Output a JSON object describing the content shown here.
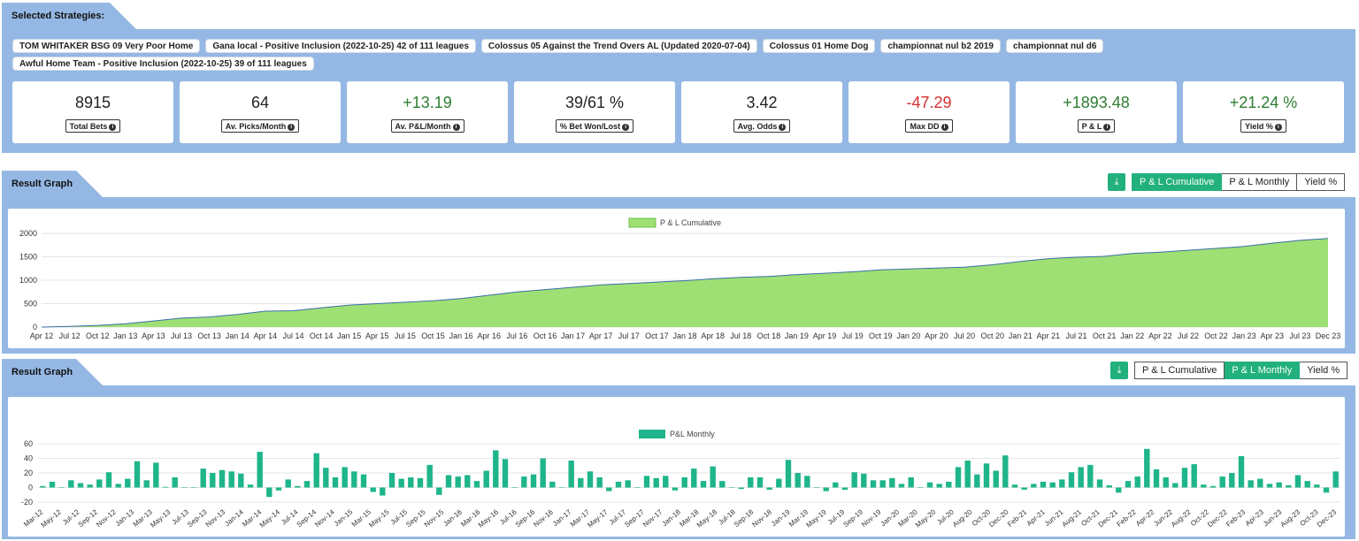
{
  "strategies": {
    "title": "Selected Strategies:",
    "chips": [
      "TOM WHITAKER BSG 09 Very Poor Home",
      "Gana local - Positive Inclusion (2022-10-25) 42 of 111 leagues",
      "Colossus 05 Against the Trend Overs AL (Updated 2020-07-04)",
      "Colossus 01 Home Dog",
      "championnat nul b2 2019",
      "championnat nul d6",
      "Awful Home Team - Positive Inclusion (2022-10-25) 39 of 111 leagues"
    ]
  },
  "stats": [
    {
      "value": "8915",
      "label": "Total Bets",
      "tone": "neutral"
    },
    {
      "value": "64",
      "label": "Av. Picks/Month",
      "tone": "neutral"
    },
    {
      "value": "+13.19",
      "label": "Av. P&L/Month",
      "tone": "pos"
    },
    {
      "value": "39/61 %",
      "label": "% Bet Won/Lost",
      "tone": "neutral"
    },
    {
      "value": "3.42",
      "label": "Avg. Odds",
      "tone": "neutral"
    },
    {
      "value": "-47.29",
      "label": "Max DD",
      "tone": "neg"
    },
    {
      "value": "+1893.48",
      "label": "P & L",
      "tone": "pos"
    },
    {
      "value": "+21.24 %",
      "label": "Yield %",
      "tone": "pos"
    }
  ],
  "graph1": {
    "title": "Result Graph",
    "download_icon": "download-icon",
    "buttons": [
      "P & L Cumulative",
      "P & L Monthly",
      "Yield %"
    ],
    "active": 0
  },
  "graph2": {
    "title": "Result Graph",
    "download_icon": "download-icon",
    "buttons": [
      "P & L Cumulative",
      "P & L Monthly",
      "Yield %"
    ],
    "active": 1
  },
  "colors": {
    "panel": "#94b8e3",
    "green_active": "#22b07d",
    "area_fill": "#9fe075",
    "area_line": "#3a6ea5",
    "bar": "#1fb58a"
  },
  "chart_data": [
    {
      "type": "area",
      "legend": "P & L Cumulative",
      "legend_position": "top-center",
      "ylim": [
        0,
        2000
      ],
      "yticks": [
        0,
        500,
        1000,
        1500,
        2000
      ],
      "grid": true,
      "xtick_labels": [
        "Apr 12",
        "Jul 12",
        "Oct 12",
        "Jan 13",
        "Apr 13",
        "Jul 13",
        "Oct 13",
        "Jan 14",
        "Apr 14",
        "Jul 14",
        "Oct 14",
        "Jan 15",
        "Apr 15",
        "Jul 15",
        "Oct 15",
        "Jan 16",
        "Apr 16",
        "Jul 16",
        "Oct 16",
        "Jan 17",
        "Apr 17",
        "Jul 17",
        "Oct 17",
        "Jan 18",
        "Apr 18",
        "Jul 18",
        "Oct 18",
        "Jan 19",
        "Apr 19",
        "Jul 19",
        "Oct 19",
        "Jan 20",
        "Apr 20",
        "Jul 20",
        "Oct 20",
        "Jan 21",
        "Apr 21",
        "Jul 21",
        "Oct 21",
        "Jan 22",
        "Apr 22",
        "Jul 22",
        "Oct 22",
        "Jan 23",
        "Apr 23",
        "Jul 23",
        "Dec 23"
      ],
      "x": [
        "Apr 12",
        "Jul 12",
        "Oct 12",
        "Jan 13",
        "Apr 13",
        "Jul 13",
        "Oct 13",
        "Jan 14",
        "Apr 14",
        "Jul 14",
        "Oct 14",
        "Jan 15",
        "Apr 15",
        "Jul 15",
        "Oct 15",
        "Jan 16",
        "Apr 16",
        "Jul 16",
        "Oct 16",
        "Jan 17",
        "Apr 17",
        "Jul 17",
        "Oct 17",
        "Jan 18",
        "Apr 18",
        "Jul 18",
        "Oct 18",
        "Jan 19",
        "Apr 19",
        "Jul 19",
        "Oct 19",
        "Jan 20",
        "Apr 20",
        "Jul 20",
        "Oct 20",
        "Jan 21",
        "Apr 21",
        "Jul 21",
        "Oct 21",
        "Jan 22",
        "Apr 22",
        "Jul 22",
        "Oct 22",
        "Jan 23",
        "Apr 23",
        "Jul 23",
        "Dec 23"
      ],
      "y": [
        0,
        15,
        35,
        70,
        130,
        190,
        215,
        270,
        340,
        350,
        410,
        470,
        500,
        530,
        560,
        610,
        680,
        750,
        800,
        850,
        900,
        930,
        960,
        990,
        1030,
        1060,
        1080,
        1120,
        1150,
        1180,
        1220,
        1240,
        1260,
        1280,
        1330,
        1400,
        1460,
        1490,
        1510,
        1570,
        1600,
        1640,
        1680,
        1720,
        1790,
        1850,
        1893
      ]
    },
    {
      "type": "bar",
      "legend": "P&L Monthly",
      "legend_position": "top-center",
      "ylim": [
        -20,
        60
      ],
      "yticks": [
        -20,
        0,
        20,
        40,
        60
      ],
      "grid": true,
      "xtick_labels": [
        "Mar-12",
        "May-12",
        "Jul-12",
        "Sep-12",
        "Nov-12",
        "Jan-13",
        "Mar-13",
        "May-13",
        "Jul-13",
        "Sep-13",
        "Nov-13",
        "Jan-14",
        "Mar-14",
        "May-14",
        "Jul-14",
        "Sep-14",
        "Nov-14",
        "Jan-15",
        "Mar-15",
        "May-15",
        "Jul-15",
        "Sep-15",
        "Nov-15",
        "Jan-16",
        "Mar-16",
        "May-16",
        "Jul-16",
        "Sep-16",
        "Nov-16",
        "Jan-17",
        "Mar-17",
        "May-17",
        "Jul-17",
        "Sep-17",
        "Nov-17",
        "Jan-18",
        "Mar-18",
        "May-18",
        "Jul-18",
        "Sep-18",
        "Nov-18",
        "Jan-19",
        "Mar-19",
        "May-19",
        "Jul-19",
        "Sep-19",
        "Nov-19",
        "Jan-20",
        "Mar-20",
        "May-20",
        "Jul-20",
        "Aug-20",
        "Oct-20",
        "Dec-20",
        "Feb-21",
        "Apr-21",
        "Jun-21",
        "Aug-21",
        "Oct-21",
        "Dec-21",
        "Feb-22",
        "Apr-22",
        "Jun-22",
        "Aug-22",
        "Oct-22",
        "Dec-22",
        "Feb-23",
        "Apr-23",
        "Jun-23",
        "Aug-23",
        "Oct-23",
        "Dec-23"
      ],
      "values": [
        2,
        8,
        0,
        10,
        6,
        4,
        11,
        21,
        5,
        12,
        36,
        10,
        34,
        1,
        14,
        0,
        0,
        26,
        20,
        24,
        22,
        19,
        4,
        49,
        -13,
        -4,
        11,
        2,
        9,
        47,
        27,
        14,
        28,
        22,
        18,
        -6,
        -11,
        20,
        12,
        14,
        13,
        31,
        -10,
        17,
        15,
        17,
        9,
        23,
        51,
        39,
        0,
        15,
        18,
        40,
        8,
        0,
        37,
        13,
        22,
        14,
        -5,
        8,
        10,
        0,
        16,
        13,
        16,
        -4,
        14,
        26,
        9,
        29,
        9,
        0,
        -2,
        14,
        14,
        -3,
        12,
        38,
        20,
        16,
        0,
        -5,
        7,
        -3,
        21,
        19,
        10,
        10,
        13,
        5,
        14,
        0,
        7,
        5,
        8,
        28,
        37,
        18,
        33,
        23,
        44,
        4,
        -3,
        5,
        8,
        7,
        11,
        21,
        28,
        31,
        11,
        3,
        -7,
        9,
        15,
        53,
        25,
        14,
        6,
        27,
        32,
        4,
        2,
        15,
        20,
        43,
        10,
        12,
        5,
        7,
        3,
        17,
        9,
        4,
        -7,
        22
      ]
    }
  ]
}
